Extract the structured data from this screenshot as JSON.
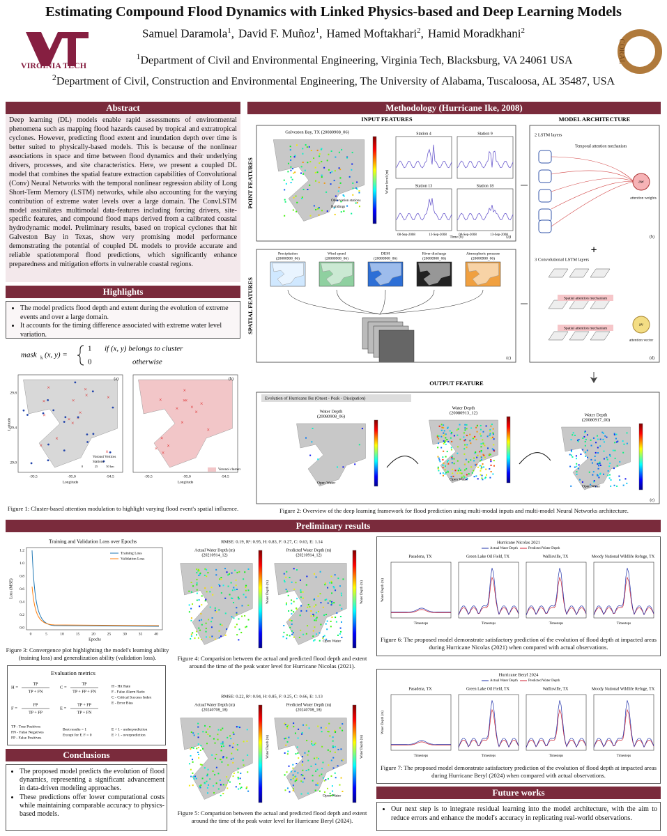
{
  "header": {
    "title": "Estimating Compound Flood Dynamics with Linked Physics-based and Deep Learning Models",
    "authors": [
      {
        "name": "Samuel Daramola",
        "sup": "1",
        "sep": ","
      },
      {
        "name": "David F. Muñoz",
        "sup": "1",
        "sep": ","
      },
      {
        "name": "Hamed Moftakhari",
        "sup": "2",
        "sep": ","
      },
      {
        "name": "Hamid Moradkhani",
        "sup": "2",
        "sep": ""
      }
    ],
    "affiliations": [
      {
        "sup": "1",
        "text": "Department of Civil and Environmental Engineering, Virginia Tech, Blacksburg, VA 24061 USA"
      },
      {
        "sup": "2",
        "text": "Department of Civil, Construction and Environmental Engineering, The University of Alabama, Tuscaloosa, AL 35487, USA"
      }
    ],
    "logo_left": "VIRGINIA TECH",
    "logo_right": "CORAL"
  },
  "abstract": {
    "heading": "Abstract",
    "text": "Deep learning (DL) models enable rapid assessments of environmental phenomena such as mapping flood hazards caused by tropical and extratropical cyclones. However, predicting flood extent and inundation depth over time is better suited to physically-based models. This is because of the nonlinear associations in space and time between flood dynamics and their underlying drivers, processes, and site characteristics. Here, we present a coupled DL model that combines the spatial feature extraction capabilities of Convolutional (Conv) Neural Networks with the temporal nonlinear regression ability of Long Short-Term Memory (LSTM) networks, while also accounting for the varying contribution of extreme water levels over a large domain. The ConvLSTM model assimilates multimodal data-features including forcing drivers, site-specific features, and compound flood maps derived from a calibrated coastal hydrodynamic model. Preliminary results, based on tropical cyclones that hit Galveston Bay in Texas, show very promising model performance demonstrating the potential of coupled DL models to provide accurate and reliable spatiotemporal flood predictions, which significantly enhance preparedness and mitigation efforts in vulnerable coastal regions."
  },
  "highlights": {
    "heading": "Highlights",
    "items": [
      "The model predicts flood depth and extent during the evolution of extreme events and over a large domain.",
      "It accounts for the timing difference associated with extreme water level variation."
    ],
    "formula": {
      "lhs": "mask",
      "sub": "k",
      "args": "(x, y) =",
      "case1_value": "1",
      "case1_cond": "if (x, y) belongs to cluster",
      "case2_value": "0",
      "case2_cond": "otherwise"
    }
  },
  "figure1": {
    "panels": [
      "(a)",
      "(b)"
    ],
    "xlabel": "Longitude",
    "ylabel": "Latitude",
    "xticks": [
      "-95.5",
      "-95.0",
      "-94.5"
    ],
    "yticks": [
      "29.8",
      "29.4",
      "29.0"
    ],
    "legend_a": [
      "Voronoi Vertices",
      "Stations"
    ],
    "legend_b": [
      "Voronoi clusters"
    ],
    "scale": [
      "0",
      "25",
      "50 km"
    ],
    "caption": "Figure 1: Cluster-based attention modulation to highlight varying flood event's spatial influence."
  },
  "methodology": {
    "heading": "Methodology (Hurricane Ike, 2008)",
    "input_features": "INPUT FEATURES",
    "model_architecture": "MODEL ARCHITECTURE",
    "point_features": "POINT FEATURES",
    "spatial_features": "SPATIAL FEATURES",
    "output_feature": "OUTPUT FEATURE",
    "map_title": "Galveston Bay, TX (20080908_06)",
    "map_legend": [
      "Observation stations",
      "Buildings"
    ],
    "map_colorbar": "Water level (m)",
    "stations": [
      "Station 4",
      "Station 9",
      "Station 13",
      "Station 18"
    ],
    "station_xticks": [
      "08-Sep-2008",
      "13-Sep-2008"
    ],
    "station_xlabel": "Time (h)",
    "spatial_inputs": [
      {
        "title": "Precipitation",
        "date": "(20080908_06)"
      },
      {
        "title": "Wind speed",
        "date": "(20080908_06)"
      },
      {
        "title": "DEM",
        "date": "(20080908_06)"
      },
      {
        "title": "River discharge",
        "date": "(20080908_06)"
      },
      {
        "title": "Atmospheric pressure",
        "date": "(20080908_06)"
      }
    ],
    "lstm_layers": "2 LSTM layers",
    "temporal_attention": "Temporal attention mechanism",
    "attention_weights": "attention weights",
    "aw": "aw",
    "convlstm_layers": "3 Convolutional LSTM layers",
    "spatial_attention": "Spatial attention mechanism",
    "attention_vector": "attention vector",
    "av": "av",
    "evolution": "Evolution of Hurricane Ike (Onset - Peak - Dissipation)",
    "outputs": [
      {
        "title": "Water Depth",
        "date": "(20080908_06)"
      },
      {
        "title": "Water Depth",
        "date": "(20080913_12)"
      },
      {
        "title": "Water Depth",
        "date": "(20080917_00)"
      }
    ],
    "open_water": "Open Water",
    "panels": [
      "(a)",
      "(b)",
      "(c)",
      "(d)",
      "(e)"
    ],
    "caption": "Figure 2: Overview of the deep learning framework for flood prediction using multi-modal inputs and multi-model Neural Networks architecture."
  },
  "results": {
    "heading": "Preliminary results",
    "loss": {
      "title": "Training and Validation Loss over Epochs",
      "legend": [
        "Training Loss",
        "Validation Loss"
      ],
      "xlabel": "Epochs",
      "ylabel": "Loss (MSE)",
      "xticks": [
        "0",
        "5",
        "10",
        "15",
        "20",
        "25",
        "30",
        "35",
        "40"
      ],
      "yticks": [
        "1.2",
        "1.0",
        "0.8",
        "0.6",
        "0.4",
        "0.2",
        "0.0"
      ],
      "caption": "Figure 3: Convergence plot highlighting the model's learning ability (training loss) and generalization ability (validation loss)."
    },
    "metrics": {
      "title": "Evaluation metrics",
      "formulas": [
        {
          "lhs": "H =",
          "num": "TP",
          "den": "TP + FN"
        },
        {
          "lhs": "C =",
          "num": "TP",
          "den": "TP + FP + FN"
        },
        {
          "lhs": "F =",
          "num": "FP",
          "den": "TP + FP"
        },
        {
          "lhs": "E =",
          "num": "TP + FP",
          "den": "TP + FN"
        }
      ],
      "definitions": [
        "H - Hit Rate",
        "F - False Alarm Ratio",
        "C - Critical Success Index",
        "E - Error Bias"
      ],
      "counts": [
        "TP - True Positives",
        "FN - False Negatives",
        "FP - False Positives"
      ],
      "best": [
        "Best results = 1",
        "Except for F, F = 0"
      ],
      "bias": [
        "E < 1 - underprediction",
        "E > 1 - overprediction"
      ]
    },
    "figure4": {
      "stats": "RMSE: 0.19, R²: 0.95, H: 0.83, F: 0.27, C: 0.63, E: 1.14",
      "panels": [
        {
          "title": "Actual Water Depth (m)",
          "date": "(20210914_12)"
        },
        {
          "title": "Predicted Water Depth (m)",
          "date": "(20210914_12)"
        }
      ],
      "colorbar": "Water Depth (m)",
      "open_water": "Open Water",
      "caption": "Figure 4: Comparision between the actual and predicted flood depth and extent around the time of the peak water level for Hurricane Nicolas (2021)."
    },
    "figure5": {
      "stats": "RMSE: 0.22, R²: 0.94, H: 0.85, F: 0.25, C: 0.66, E: 1.13",
      "panels": [
        {
          "title": "Actual Water Depth (m)",
          "date": "(20240708_18)"
        },
        {
          "title": "Predicted Water Depth (m)",
          "date": "(20240708_18)"
        }
      ],
      "colorbar": "Water Depth (m)",
      "open_water": "Open Water",
      "caption": "Figure 5: Comparision between the actual and predicted flood depth and extent around the time of the peak water level for Hurricane Beryl (2024)."
    },
    "figure6": {
      "title": "Hurricane Nicolas 2021",
      "legend": [
        "Actual Water Depth",
        "Predicted Water Depth"
      ],
      "sites": [
        "Pasadena, TX",
        "Green Lake Oil Field, TX",
        "Wallisville, TX",
        "Moody National Wildlife Refuge, TX"
      ],
      "xlabel": "Timesteps",
      "ylabel": "Water Depth (m)",
      "caption": "Figure 6: The proposed model demonstrate satisfactory prediction of the evolution of flood depth at impacted areas during Hurricane Nicolas (2021) when compared with actual observations."
    },
    "figure7": {
      "title": "Hurricane Beryl 2024",
      "legend": [
        "Actual Water Depth",
        "Predicted Water Depth"
      ],
      "sites": [
        "Pasadena, TX",
        "Green Lake Oil Field, TX",
        "Wallisville, TX",
        "Moody National Wildlife Refuge, TX"
      ],
      "xlabel": "Timesteps",
      "ylabel": "Water Depth (m)",
      "caption": "Figure 7: The proposed model demonstrate satisfactory prediction of the evolution of flood depth at impacted areas during Hurricane Beryl (2024) when compared with actual observations."
    }
  },
  "conclusions": {
    "heading": "Conclusions",
    "items": [
      "The proposed model predicts the evolution of flood dynamics, representing a significant advancement in data-driven modeling approaches.",
      "These predictions offer lower computational costs while maintaining comparable accuracy to physics-based models."
    ]
  },
  "future": {
    "heading": "Future works",
    "items": [
      "Our next step is to integrate residual learning into the model architecture, with the aim to reduce errors and enhance the model's accuracy in replicating real-world observations."
    ]
  }
}
